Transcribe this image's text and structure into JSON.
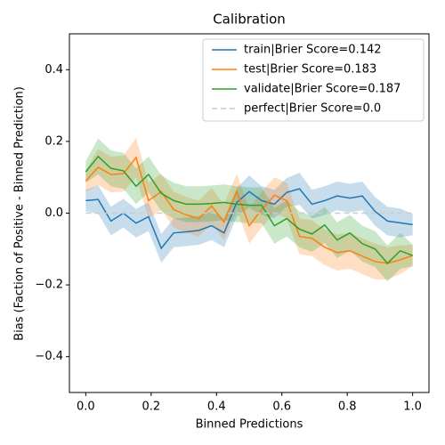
{
  "chart_data": {
    "type": "line",
    "title": "Calibration",
    "xlabel": "Binned Predictions",
    "ylabel": "Bias (Faction of Positive - Binned Prediction)",
    "x": [
      0,
      0.038,
      0.077,
      0.115,
      0.154,
      0.192,
      0.231,
      0.269,
      0.308,
      0.346,
      0.385,
      0.423,
      0.462,
      0.5,
      0.538,
      0.577,
      0.615,
      0.654,
      0.692,
      0.731,
      0.769,
      0.808,
      0.846,
      0.885,
      0.923,
      0.962,
      1
    ],
    "series": [
      {
        "name": "train|Brier Score=0.142",
        "color": "#1f77b4",
        "values": [
          0.035,
          0.038,
          -0.022,
          0.0,
          -0.028,
          -0.01,
          -0.098,
          -0.055,
          -0.052,
          -0.048,
          -0.035,
          -0.055,
          0.03,
          0.06,
          0.035,
          0.025,
          0.058,
          0.068,
          0.025,
          0.035,
          0.048,
          0.042,
          0.048,
          0.005,
          -0.022,
          -0.027,
          -0.032
        ],
        "errors": [
          0.03,
          0.04,
          0.04,
          0.04,
          0.04,
          0.04,
          0.04,
          0.04,
          0.04,
          0.04,
          0.04,
          0.04,
          0.04,
          0.045,
          0.04,
          0.04,
          0.04,
          0.045,
          0.04,
          0.04,
          0.04,
          0.04,
          0.04,
          0.04,
          0.04,
          0.04,
          0.03
        ]
      },
      {
        "name": "test|Brier Score=0.183",
        "color": "#ff7f0e",
        "values": [
          0.09,
          0.128,
          0.108,
          0.11,
          0.155,
          0.035,
          0.06,
          0.01,
          -0.005,
          -0.015,
          0.02,
          -0.025,
          0.06,
          -0.035,
          0.01,
          0.05,
          0.035,
          -0.065,
          -0.07,
          -0.095,
          -0.11,
          -0.105,
          -0.12,
          -0.135,
          -0.14,
          -0.13,
          -0.118
        ],
        "errors": [
          0.03,
          0.05,
          0.05,
          0.05,
          0.055,
          0.05,
          0.05,
          0.05,
          0.05,
          0.05,
          0.05,
          0.05,
          0.05,
          0.05,
          0.05,
          0.05,
          0.05,
          0.05,
          0.05,
          0.05,
          0.05,
          0.05,
          0.05,
          0.05,
          0.045,
          0.04,
          0.03
        ]
      },
      {
        "name": "validate|Brier Score=0.187",
        "color": "#2ca02c",
        "values": [
          0.115,
          0.158,
          0.125,
          0.118,
          0.075,
          0.108,
          0.055,
          0.035,
          0.025,
          0.025,
          0.027,
          0.03,
          0.025,
          0.022,
          0.022,
          -0.035,
          -0.015,
          -0.045,
          -0.058,
          -0.033,
          -0.075,
          -0.055,
          -0.085,
          -0.1,
          -0.14,
          -0.105,
          -0.118
        ],
        "errors": [
          0.03,
          0.05,
          0.05,
          0.05,
          0.05,
          0.05,
          0.05,
          0.05,
          0.05,
          0.05,
          0.05,
          0.05,
          0.05,
          0.05,
          0.05,
          0.05,
          0.05,
          0.05,
          0.05,
          0.05,
          0.05,
          0.05,
          0.05,
          0.05,
          0.05,
          0.05,
          0.03
        ]
      },
      {
        "name": "perfect|Brier Score=0.0",
        "color": "#cccccc",
        "dashed": true,
        "x": [
          0,
          1
        ],
        "values": [
          0,
          0
        ]
      }
    ],
    "xlim": [
      -0.05,
      1.05
    ],
    "ylim": [
      -0.5,
      0.5
    ],
    "xticks": [
      {
        "value": 0,
        "label": "0.0"
      },
      0.2,
      0.4,
      0.6,
      0.8,
      {
        "value": 1,
        "label": "1.0"
      }
    ],
    "yticks": [
      {
        "value": -0.4,
        "label": "−0.4"
      },
      {
        "value": -0.2,
        "label": "−0.2"
      },
      {
        "value": 0,
        "label": "0.0"
      },
      0.2,
      0.4
    ],
    "legend": "upper right"
  }
}
